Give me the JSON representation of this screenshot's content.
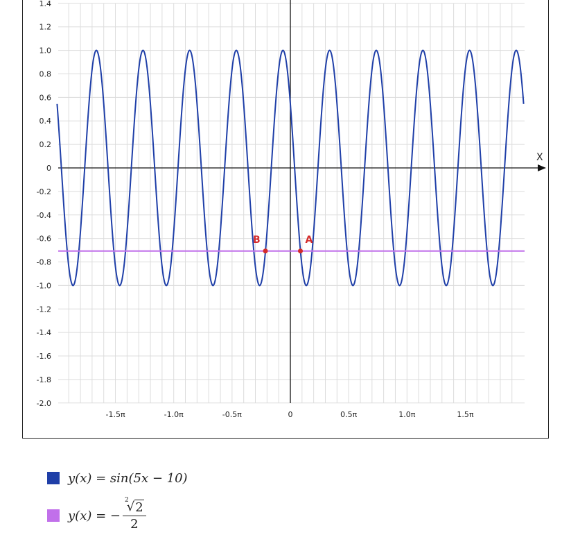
{
  "chart_data": {
    "type": "line",
    "xlabel": "X",
    "ylabel": "",
    "xlim_pi": [
      -2.0,
      2.0
    ],
    "ylim": [
      -2.0,
      1.4
    ],
    "grid": true,
    "x_ticks": [
      {
        "value_pi": -1.5,
        "label": "-1.5π"
      },
      {
        "value_pi": -1.0,
        "label": "-1.0π"
      },
      {
        "value_pi": -0.5,
        "label": "-0.5π"
      },
      {
        "value_pi": 0,
        "label": "0"
      },
      {
        "value_pi": 0.5,
        "label": "0.5π"
      },
      {
        "value_pi": 1.0,
        "label": "1.0π"
      },
      {
        "value_pi": 1.5,
        "label": "1.5π"
      }
    ],
    "y_ticks": [
      {
        "value": 1.4,
        "label": "1.4"
      },
      {
        "value": 1.2,
        "label": "1.2"
      },
      {
        "value": 1.0,
        "label": "1.0"
      },
      {
        "value": 0.8,
        "label": "0.8"
      },
      {
        "value": 0.6,
        "label": "0.6"
      },
      {
        "value": 0.4,
        "label": "0.4"
      },
      {
        "value": 0.2,
        "label": "0.2"
      },
      {
        "value": 0,
        "label": "0"
      },
      {
        "value": -0.2,
        "label": "-0.2"
      },
      {
        "value": -0.4,
        "label": "-0.4"
      },
      {
        "value": -0.6,
        "label": "-0.6"
      },
      {
        "value": -0.8,
        "label": "-0.8"
      },
      {
        "value": -1.0,
        "label": "-1.0"
      },
      {
        "value": -1.2,
        "label": "-1.2"
      },
      {
        "value": -1.4,
        "label": "-1.4"
      },
      {
        "value": -1.6,
        "label": "-1.6"
      },
      {
        "value": -1.8,
        "label": "-1.8"
      },
      {
        "value": -2.0,
        "label": "-2.0"
      }
    ],
    "series": [
      {
        "name": "y(x) = sin(5x − 10)",
        "function": "sin(5x-10)",
        "color": "#1f3fa8"
      },
      {
        "name": "y(x) = −√2/2",
        "function": "constant",
        "value": -0.7071,
        "color": "#c170ea"
      }
    ],
    "points": [
      {
        "label": "A",
        "x": 0.2708,
        "y": -0.7071,
        "color": "#d42a2a"
      },
      {
        "label": "B",
        "x": -0.6717,
        "y": -0.7071,
        "color": "#d42a2a"
      }
    ]
  },
  "legend": {
    "items": [
      {
        "color": "#1f3fa8",
        "text": "y(x) = sin(5x − 10)"
      },
      {
        "color": "#c170ea",
        "prefix": "y(x) = −",
        "root_index": "2",
        "radicand": "2",
        "denominator": "2"
      }
    ]
  }
}
